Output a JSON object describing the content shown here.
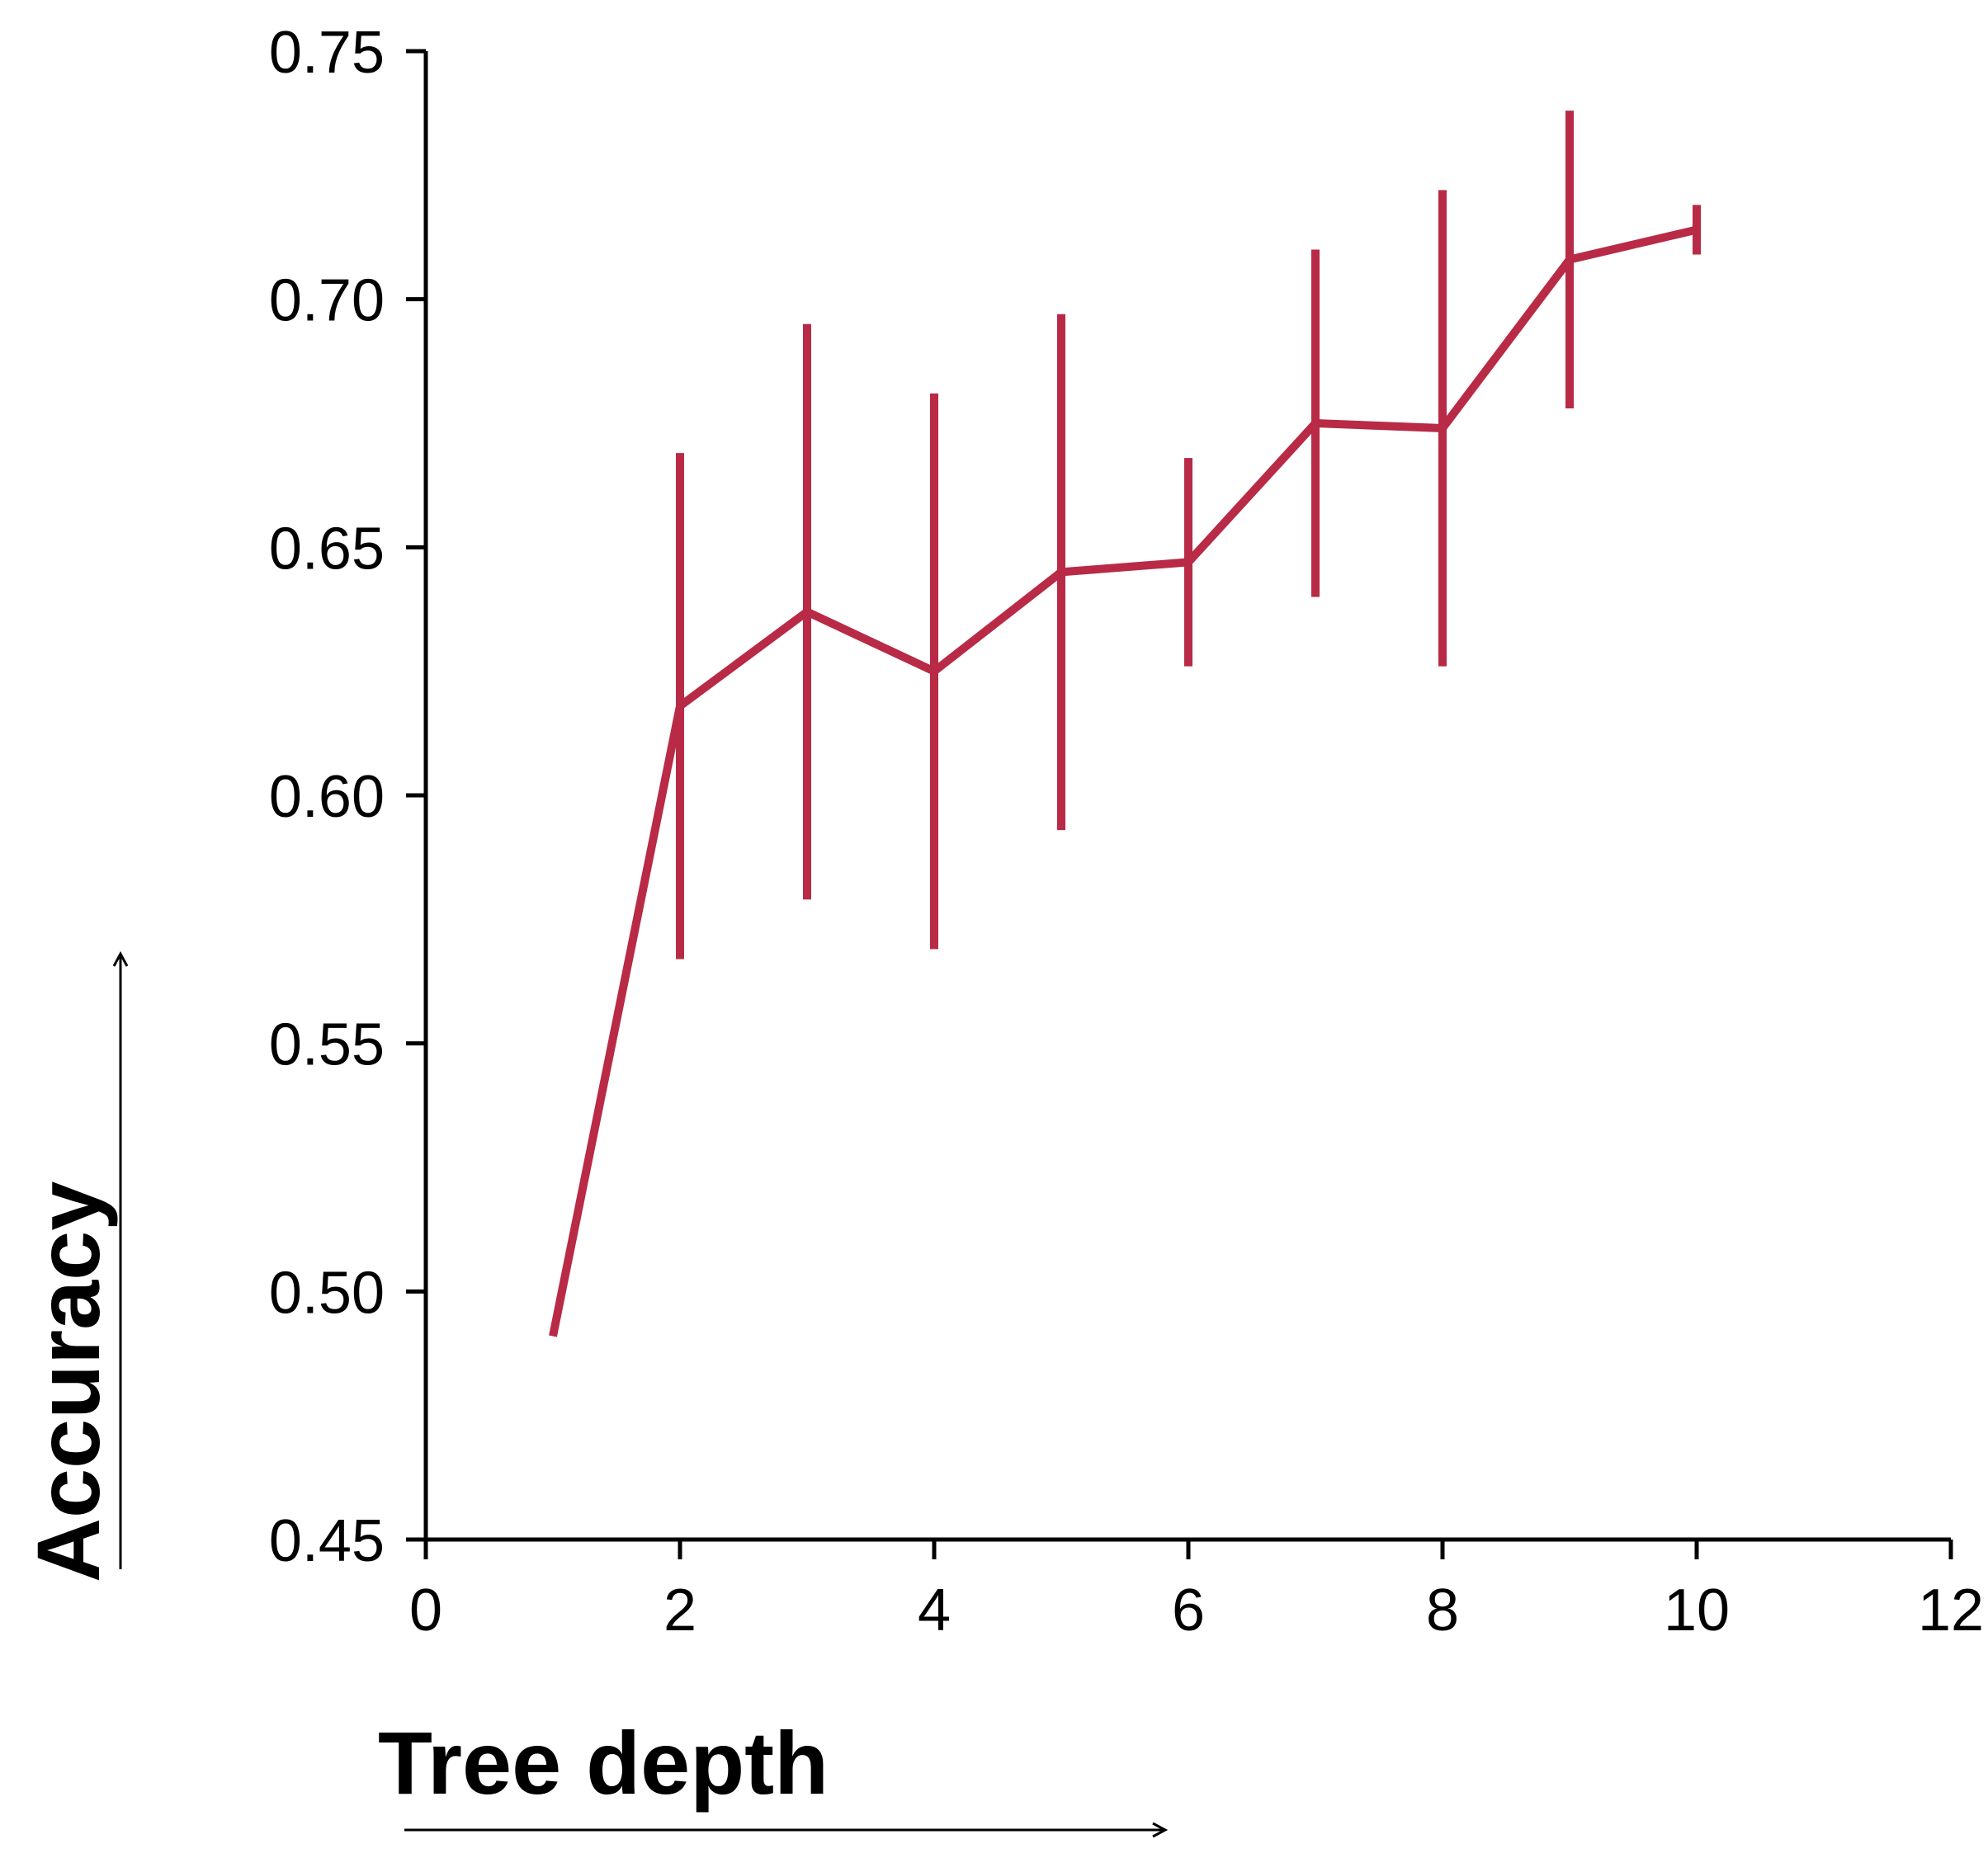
{
  "chart_data": {
    "type": "line",
    "xlabel": "Tree depth",
    "ylabel": "Accuracy",
    "xlim": [
      0,
      12
    ],
    "ylim": [
      0.45,
      0.75
    ],
    "xticks": [
      0,
      2,
      4,
      6,
      8,
      10,
      12
    ],
    "xtick_labels": [
      "0",
      "2",
      "4",
      "6",
      "8",
      "10",
      "12"
    ],
    "yticks": [
      0.45,
      0.5,
      0.55,
      0.6,
      0.65,
      0.7,
      0.75
    ],
    "ytick_labels": [
      "0.45",
      "0.50",
      "0.55",
      "0.60",
      "0.65",
      "0.70",
      "0.75"
    ],
    "grid": false,
    "series": [
      {
        "color": "#b82a46",
        "x": [
          1,
          2,
          3,
          4,
          5,
          6,
          7,
          8,
          9,
          10
        ],
        "y": [
          0.491,
          0.618,
          0.637,
          0.625,
          0.645,
          0.647,
          0.675,
          0.674,
          0.708,
          0.714
        ],
        "error": [
          0.0,
          0.051,
          0.058,
          0.056,
          0.052,
          0.021,
          0.035,
          0.048,
          0.03,
          0.005
        ]
      }
    ]
  }
}
